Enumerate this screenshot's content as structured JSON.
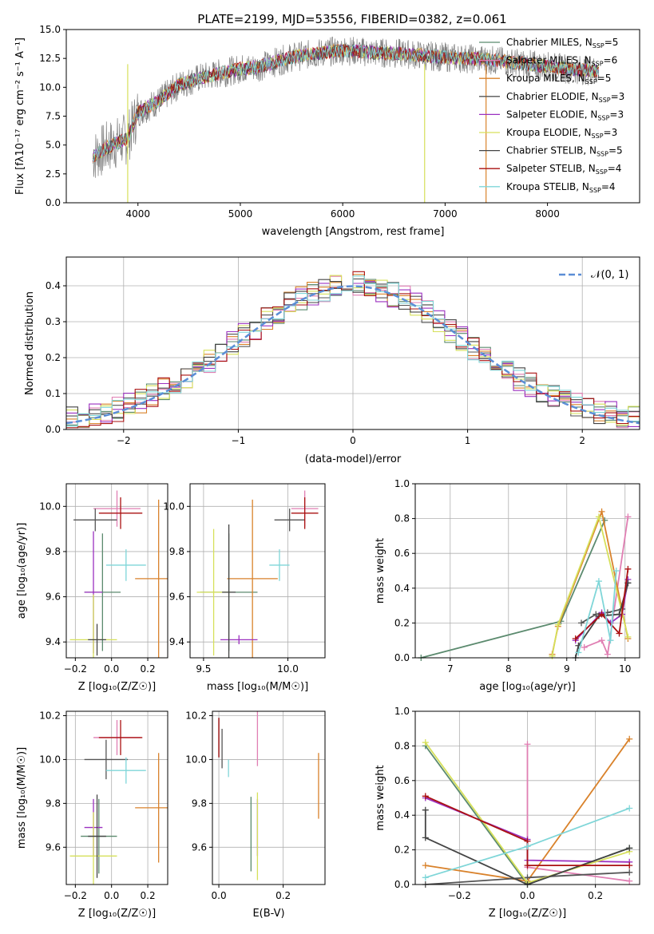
{
  "title": "PLATE=2199, MJD=53556, FIBERID=0382, z=0.061",
  "colors": {
    "Chabrier MILES": "#5b8a6e",
    "Salpeter MILES": "#e07fb3",
    "Kroupa MILES": "#d9822b",
    "Chabrier ELODIE": "#555555",
    "Salpeter ELODIE": "#9b30c0",
    "Kroupa ELODIE": "#d6e05a",
    "Chabrier STELIB": "#444444",
    "Salpeter STELIB": "#aa1111",
    "Kroupa STELIB": "#7fd6d8",
    "data": "#7f7f7f",
    "gaussian": "#5b8ed6"
  },
  "chart_data": [
    {
      "type": "line",
      "xlabel": "wavelength [Angstrom, rest frame]",
      "ylabel": "Flux [f_λ 10^-17 erg cm^-2 s^-1 A^-1]",
      "xlim": [
        3300,
        8900
      ],
      "ylim": [
        0,
        15
      ],
      "xticks": [
        "4000",
        "5000",
        "6000",
        "7000",
        "8000"
      ],
      "yticks": [
        "0.0",
        "2.5",
        "5.0",
        "7.5",
        "10.0",
        "12.5",
        "15.0"
      ],
      "legend": [
        {
          "model": "Chabrier MILES",
          "label": "Chabrier MILES, N",
          "nssp": "=5"
        },
        {
          "model": "Salpeter MILES",
          "label": "Salpeter MILES, N",
          "nssp": "=6"
        },
        {
          "model": "Kroupa MILES",
          "label": "Kroupa MILES, N",
          "nssp": "=5"
        },
        {
          "model": "Chabrier ELODIE",
          "label": "Chabrier ELODIE, N",
          "nssp": "=3"
        },
        {
          "model": "Salpeter ELODIE",
          "label": "Salpeter ELODIE, N",
          "nssp": "=3"
        },
        {
          "model": "Kroupa ELODIE",
          "label": "Kroupa ELODIE, N",
          "nssp": "=3"
        },
        {
          "model": "Chabrier STELIB",
          "label": "Chabrier STELIB, N",
          "nssp": "=5"
        },
        {
          "model": "Salpeter STELIB",
          "label": "Salpeter STELIB, N",
          "nssp": "=4"
        },
        {
          "model": "Kroupa STELIB",
          "label": "Kroupa STELIB, N",
          "nssp": "=4"
        }
      ],
      "legend_sub": "SSP",
      "legend_position": "top-right",
      "continuum": [
        [
          3560,
          4.0
        ],
        [
          3700,
          4.8
        ],
        [
          3900,
          5.6
        ],
        [
          4000,
          7.8
        ],
        [
          4200,
          8.8
        ],
        [
          4400,
          10.2
        ],
        [
          4600,
          10.8
        ],
        [
          4800,
          11.2
        ],
        [
          5000,
          11.6
        ],
        [
          5200,
          11.8
        ],
        [
          5500,
          12.6
        ],
        [
          5800,
          13.0
        ],
        [
          6000,
          13.2
        ],
        [
          6300,
          13.0
        ],
        [
          6600,
          12.9
        ],
        [
          7000,
          12.6
        ],
        [
          7400,
          12.4
        ],
        [
          7800,
          12.0
        ],
        [
          8200,
          11.6
        ],
        [
          8500,
          11.4
        ]
      ]
    },
    {
      "type": "bar",
      "xlabel": "(data-model)/error",
      "ylabel": "Normed distribution",
      "xlim": [
        -2.5,
        2.5
      ],
      "ylim": [
        0,
        0.48
      ],
      "xticks": [
        "−2",
        "−1",
        "0",
        "1",
        "2"
      ],
      "yticks": [
        "0.0",
        "0.1",
        "0.2",
        "0.3",
        "0.4"
      ],
      "legend": "𝒩(0, 1)",
      "legend_position": "top-right",
      "bin_width": 0.1,
      "histogram_envelope": [
        [
          -2.5,
          0.03
        ],
        [
          -2.0,
          0.06
        ],
        [
          -1.5,
          0.13
        ],
        [
          -1.0,
          0.25
        ],
        [
          -0.5,
          0.36
        ],
        [
          0.0,
          0.41
        ],
        [
          0.5,
          0.36
        ],
        [
          1.0,
          0.24
        ],
        [
          1.5,
          0.13
        ],
        [
          2.0,
          0.06
        ],
        [
          2.5,
          0.03
        ]
      ]
    },
    {
      "type": "scatter",
      "xlabel": "Z [log10(Z/Z☉)]",
      "ylabel": "age  [log10(age/yr)]",
      "xlim": [
        -0.25,
        0.31
      ],
      "ylim": [
        9.33,
        10.1
      ],
      "xticks": [
        "−0.2",
        "0.0",
        "0.2"
      ],
      "yticks": [
        "9.4",
        "9.6",
        "9.8",
        "10.0"
      ],
      "points": [
        {
          "model": "Chabrier MILES",
          "x": -0.05,
          "y": 9.62,
          "xerr": 0.1,
          "yerr": 0.26
        },
        {
          "model": "Salpeter MILES",
          "x": 0.03,
          "y": 9.99,
          "xerr": 0.13,
          "yerr": 0.08
        },
        {
          "model": "Kroupa MILES",
          "x": 0.26,
          "y": 9.68,
          "xerr": 0.13,
          "yerr": 0.35
        },
        {
          "model": "Chabrier ELODIE",
          "x": -0.09,
          "y": 9.94,
          "xerr": 0.12,
          "yerr": 0.05
        },
        {
          "model": "Salpeter ELODIE",
          "x": -0.1,
          "y": 9.62,
          "xerr": 0.05,
          "yerr": 0.27
        },
        {
          "model": "Kroupa ELODIE",
          "x": -0.1,
          "y": 9.41,
          "xerr": 0.13,
          "yerr": 0.2
        },
        {
          "model": "Chabrier STELIB",
          "x": -0.08,
          "y": 9.41,
          "xerr": 0.05,
          "yerr": 0.07
        },
        {
          "model": "Salpeter STELIB",
          "x": 0.05,
          "y": 9.97,
          "xerr": 0.12,
          "yerr": 0.07
        },
        {
          "model": "Kroupa STELIB",
          "x": 0.08,
          "y": 9.74,
          "xerr": 0.11,
          "yerr": 0.07
        }
      ]
    },
    {
      "type": "scatter",
      "xlabel": "mass [log10(M/M☉)]",
      "ylabel": "",
      "xlim": [
        9.42,
        10.22
      ],
      "ylim": [
        9.33,
        10.1
      ],
      "xticks": [
        "9.5",
        "10.0"
      ],
      "yticks": [
        "9.4",
        "9.6",
        "9.8",
        "10.0"
      ],
      "points": [
        {
          "model": "Chabrier MILES",
          "x": 9.65,
          "y": 9.62,
          "xerr": 0.17,
          "yerr": 0.26
        },
        {
          "model": "Salpeter MILES",
          "x": 10.1,
          "y": 9.99,
          "xerr": 0.08,
          "yerr": 0.08
        },
        {
          "model": "Kroupa MILES",
          "x": 9.79,
          "y": 9.68,
          "xerr": 0.15,
          "yerr": 0.35
        },
        {
          "model": "Chabrier ELODIE",
          "x": 10.01,
          "y": 9.94,
          "xerr": 0.09,
          "yerr": 0.05
        },
        {
          "model": "Salpeter ELODIE",
          "x": 9.71,
          "y": 9.41,
          "xerr": 0.11,
          "yerr": 0.02
        },
        {
          "model": "Kroupa ELODIE",
          "x": 9.56,
          "y": 9.62,
          "xerr": 0.1,
          "yerr": 0.28
        },
        {
          "model": "Chabrier STELIB",
          "x": 9.65,
          "y": 9.62,
          "xerr": 0.04,
          "yerr": 0.3
        },
        {
          "model": "Salpeter STELIB",
          "x": 10.1,
          "y": 9.97,
          "xerr": 0.08,
          "yerr": 0.07
        },
        {
          "model": "Kroupa STELIB",
          "x": 9.95,
          "y": 9.74,
          "xerr": 0.06,
          "yerr": 0.07
        }
      ]
    },
    {
      "type": "line",
      "xlabel": "age  [log10(age/yr)]",
      "ylabel": "mass weight",
      "xlim": [
        6.4,
        10.25
      ],
      "ylim": [
        0,
        1
      ],
      "xticks": [
        "7",
        "8",
        "9",
        "10"
      ],
      "yticks": [
        "0.0",
        "0.2",
        "0.4",
        "0.6",
        "0.8",
        "1.0"
      ],
      "series": [
        {
          "model": "Chabrier MILES",
          "points": [
            [
              6.5,
              0.0
            ],
            [
              8.9,
              0.21
            ],
            [
              9.65,
              0.79
            ]
          ]
        },
        {
          "model": "Salpeter MILES",
          "points": [
            [
              9.3,
              0.06
            ],
            [
              9.6,
              0.1
            ],
            [
              9.7,
              0.02
            ],
            [
              10.05,
              0.81
            ]
          ]
        },
        {
          "model": "Kroupa MILES",
          "points": [
            [
              8.75,
              0.02
            ],
            [
              8.85,
              0.18
            ],
            [
              9.6,
              0.84
            ],
            [
              10.05,
              0.11
            ]
          ]
        },
        {
          "model": "Chabrier ELODIE",
          "points": [
            [
              9.25,
              0.2
            ],
            [
              9.5,
              0.25
            ],
            [
              9.7,
              0.26
            ],
            [
              9.95,
              0.28
            ],
            [
              10.05,
              0.43
            ]
          ]
        },
        {
          "model": "Salpeter ELODIE",
          "points": [
            [
              9.15,
              0.1
            ],
            [
              9.6,
              0.26
            ],
            [
              9.75,
              0.2
            ],
            [
              9.95,
              0.25
            ],
            [
              10.05,
              0.45
            ]
          ]
        },
        {
          "model": "Kroupa ELODIE",
          "points": [
            [
              8.75,
              0.01
            ],
            [
              8.85,
              0.19
            ],
            [
              9.55,
              0.81
            ],
            [
              10.05,
              0.12
            ]
          ]
        },
        {
          "model": "Chabrier STELIB",
          "points": [
            [
              9.15,
              0.0
            ],
            [
              9.2,
              0.07
            ],
            [
              9.55,
              0.24
            ],
            [
              9.9,
              0.25
            ],
            [
              10.05,
              0.43
            ]
          ]
        },
        {
          "model": "Salpeter STELIB",
          "points": [
            [
              9.15,
              0.11
            ],
            [
              9.6,
              0.25
            ],
            [
              9.9,
              0.14
            ],
            [
              10.05,
              0.51
            ]
          ]
        },
        {
          "model": "Kroupa STELIB",
          "points": [
            [
              9.2,
              0.03
            ],
            [
              9.55,
              0.44
            ],
            [
              9.75,
              0.1
            ],
            [
              9.85,
              0.5
            ]
          ]
        }
      ]
    },
    {
      "type": "scatter",
      "xlabel": "Z [log10(Z/Z☉)]",
      "ylabel": "mass [log10(M/M☉)]",
      "xlim": [
        -0.25,
        0.31
      ],
      "ylim": [
        9.43,
        10.22
      ],
      "xticks": [
        "−0.2",
        "0.0",
        "0.2"
      ],
      "yticks": [
        "9.6",
        "9.8",
        "10.0",
        "10.2"
      ],
      "points": [
        {
          "model": "Chabrier MILES",
          "x": -0.07,
          "y": 9.65,
          "xerr": 0.1,
          "yerr": 0.17
        },
        {
          "model": "Salpeter MILES",
          "x": 0.03,
          "y": 10.1,
          "xerr": 0.13,
          "yerr": 0.08
        },
        {
          "model": "Kroupa MILES",
          "x": 0.26,
          "y": 9.78,
          "xerr": 0.13,
          "yerr": 0.25
        },
        {
          "model": "Chabrier ELODIE",
          "x": -0.03,
          "y": 10.0,
          "xerr": 0.12,
          "yerr": 0.09
        },
        {
          "model": "Salpeter ELODIE",
          "x": -0.1,
          "y": 9.69,
          "xerr": 0.05,
          "yerr": 0.13
        },
        {
          "model": "Kroupa ELODIE",
          "x": -0.1,
          "y": 9.56,
          "xerr": 0.13,
          "yerr": 0.2
        },
        {
          "model": "Chabrier STELIB",
          "x": -0.08,
          "y": 9.65,
          "xerr": 0.05,
          "yerr": 0.19
        },
        {
          "model": "Salpeter STELIB",
          "x": 0.05,
          "y": 10.1,
          "xerr": 0.12,
          "yerr": 0.08
        },
        {
          "model": "Kroupa STELIB",
          "x": 0.08,
          "y": 9.95,
          "xerr": 0.11,
          "yerr": 0.06
        }
      ]
    },
    {
      "type": "scatter",
      "xlabel": "E(B-V)",
      "ylabel": "",
      "xlim": [
        -0.02,
        0.33
      ],
      "ylim": [
        9.43,
        10.22
      ],
      "xticks": [
        "0.0",
        "0.2"
      ],
      "yticks": [
        "9.6",
        "9.8",
        "10.0",
        "10.2"
      ],
      "points": [
        {
          "model": "Chabrier MILES",
          "x": 0.1,
          "y": 9.66,
          "xerr": 0,
          "yerr": 0.17
        },
        {
          "model": "Salpeter MILES",
          "x": 0.12,
          "y": 10.1,
          "xerr": 0,
          "yerr": 0.13
        },
        {
          "model": "Kroupa MILES",
          "x": 0.31,
          "y": 9.88,
          "xerr": 0,
          "yerr": 0.15
        },
        {
          "model": "Chabrier ELODIE",
          "x": 0.01,
          "y": 10.05,
          "xerr": 0,
          "yerr": 0.09
        },
        {
          "model": "Salpeter ELODIE",
          "x": 0.12,
          "y": 9.69,
          "xerr": 0,
          "yerr": 0.13
        },
        {
          "model": "Kroupa ELODIE",
          "x": 0.12,
          "y": 9.65,
          "xerr": 0,
          "yerr": 0.2
        },
        {
          "model": "Chabrier STELIB",
          "x": 0.0,
          "y": 10.1,
          "xerr": 0,
          "yerr": 0.09
        },
        {
          "model": "Salpeter STELIB",
          "x": 0.0,
          "y": 10.1,
          "xerr": 0,
          "yerr": 0.09
        },
        {
          "model": "Kroupa STELIB",
          "x": 0.03,
          "y": 9.96,
          "xerr": 0,
          "yerr": 0.04
        }
      ]
    },
    {
      "type": "line",
      "xlabel": "Z [log10(Z/Z☉)]",
      "ylabel": "mass weight",
      "xlim": [
        -0.33,
        0.33
      ],
      "ylim": [
        0,
        1
      ],
      "xticks": [
        "−0.2",
        "0.0",
        "0.2"
      ],
      "yticks": [
        "0.0",
        "0.2",
        "0.4",
        "0.6",
        "0.8",
        "1.0"
      ],
      "series": [
        {
          "model": "Chabrier MILES",
          "points": [
            [
              -0.3,
              0.8
            ],
            [
              0.0,
              0.0
            ],
            [
              0.3,
              0.21
            ]
          ]
        },
        {
          "model": "Salpeter MILES",
          "points": [
            [
              0.0,
              0.81
            ],
            [
              0.0,
              0.1
            ],
            [
              0.3,
              0.02
            ]
          ]
        },
        {
          "model": "Kroupa MILES",
          "points": [
            [
              -0.3,
              0.11
            ],
            [
              0.0,
              0.02
            ],
            [
              0.3,
              0.84
            ]
          ]
        },
        {
          "model": "Chabrier ELODIE",
          "points": [
            [
              -0.3,
              0.0
            ],
            [
              0.0,
              0.04
            ],
            [
              0.3,
              0.07
            ]
          ]
        },
        {
          "model": "Salpeter ELODIE",
          "points": [
            [
              -0.3,
              0.5
            ],
            [
              0.0,
              0.26
            ],
            [
              0.0,
              0.14
            ],
            [
              0.3,
              0.13
            ]
          ]
        },
        {
          "model": "Kroupa ELODIE",
          "points": [
            [
              -0.3,
              0.82
            ],
            [
              0.0,
              0.01
            ],
            [
              0.3,
              0.19
            ]
          ]
        },
        {
          "model": "Chabrier STELIB",
          "points": [
            [
              -0.3,
              0.43
            ],
            [
              -0.3,
              0.27
            ],
            [
              0.0,
              0.0
            ],
            [
              0.3,
              0.21
            ]
          ]
        },
        {
          "model": "Salpeter STELIB",
          "points": [
            [
              -0.3,
              0.51
            ],
            [
              0.0,
              0.25
            ],
            [
              0.0,
              0.11
            ],
            [
              0.3,
              0.11
            ]
          ]
        },
        {
          "model": "Kroupa STELIB",
          "points": [
            [
              -0.3,
              0.04
            ],
            [
              0.0,
              0.22
            ],
            [
              0.3,
              0.44
            ]
          ]
        }
      ]
    }
  ]
}
